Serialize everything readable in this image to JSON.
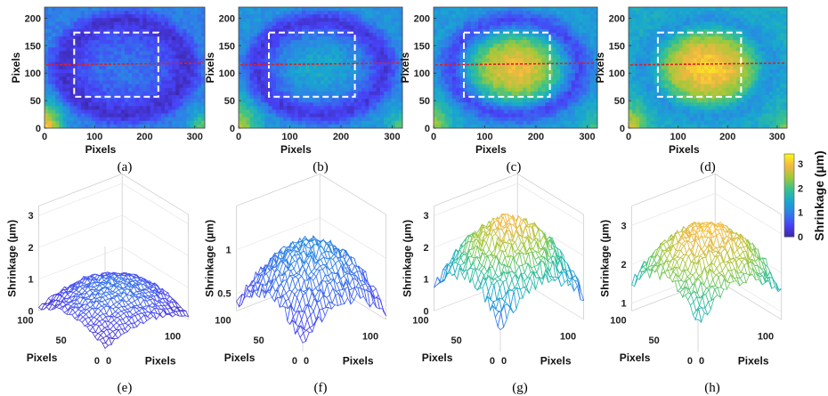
{
  "chart_data": {
    "type": "heatmap",
    "heatmaps": [
      {
        "caption": "(a)",
        "xlabel": "Pixels",
        "ylabel": "Pixels",
        "xticks": [
          "0",
          "100",
          "200",
          "300"
        ],
        "yticks": [
          "0",
          "50",
          "100",
          "150",
          "200"
        ],
        "xlim": [
          0,
          320
        ],
        "ylim": [
          0,
          220
        ],
        "center_level": 0.9,
        "ring_level": 0.2,
        "edge_level": 1.0,
        "corner_level": 3.0
      },
      {
        "caption": "(b)",
        "xlabel": "Pixels",
        "ylabel": "Pixels",
        "xticks": [
          "0",
          "100",
          "200",
          "300"
        ],
        "yticks": [
          "0",
          "50",
          "100",
          "150",
          "200"
        ],
        "xlim": [
          0,
          320
        ],
        "ylim": [
          0,
          220
        ],
        "center_level": 1.5,
        "ring_level": 0.3,
        "edge_level": 1.2,
        "corner_level": 2.6
      },
      {
        "caption": "(c)",
        "xlabel": "Pixels",
        "ylabel": "Pixels",
        "xticks": [
          "0",
          "100",
          "200",
          "300"
        ],
        "yticks": [
          "0",
          "50",
          "100",
          "150",
          "200"
        ],
        "xlim": [
          0,
          320
        ],
        "ylim": [
          0,
          220
        ],
        "center_level": 2.9,
        "ring_level": 0.5,
        "edge_level": 1.3,
        "corner_level": 2.4
      },
      {
        "caption": "(d)",
        "xlabel": "Pixels",
        "ylabel": "Pixels",
        "xticks": [
          "0",
          "100",
          "200",
          "300"
        ],
        "yticks": [
          "0",
          "50",
          "100",
          "150",
          "200"
        ],
        "xlim": [
          0,
          320
        ],
        "ylim": [
          0,
          220
        ],
        "center_level": 3.1,
        "ring_level": 1.2,
        "edge_level": 1.5,
        "corner_level": 2.6
      }
    ],
    "surfaces": [
      {
        "caption": "(e)",
        "zlabel": "Shrinkage (µm)",
        "xlabel": "Pixels",
        "ylabel": "Pixels",
        "zticks": [
          "0",
          "1",
          "2",
          "3"
        ],
        "zlim": [
          0,
          3.3
        ],
        "xticks": [
          "0",
          "100"
        ],
        "yticks": [
          "0",
          "50",
          "100"
        ],
        "peak": 0.9,
        "base": 0.1
      },
      {
        "caption": "(f)",
        "zlabel": "Shrinkage (µm)",
        "xlabel": "Pixels",
        "ylabel": "Pixels",
        "zticks": [
          "0.5",
          "1"
        ],
        "zlim": [
          0.3,
          1.5
        ],
        "xticks": [
          "0",
          "100"
        ],
        "yticks": [
          "0",
          "50",
          "100"
        ],
        "peak": 1.1,
        "base": 0.35
      },
      {
        "caption": "(g)",
        "zlabel": "Shrinkage (µm)",
        "xlabel": "Pixels",
        "ylabel": "Pixels",
        "zticks": [
          "0",
          "1",
          "2",
          "3"
        ],
        "zlim": [
          0,
          3.3
        ],
        "xticks": [
          "0",
          "100"
        ],
        "yticks": [
          "0",
          "50",
          "100"
        ],
        "peak": 2.9,
        "base": 0.7
      },
      {
        "caption": "(h)",
        "zlabel": "Shrinkage (µm)",
        "xlabel": "Pixels",
        "ylabel": "Pixels",
        "zticks": [
          "1",
          "2",
          "3"
        ],
        "zlim": [
          0.8,
          3.5
        ],
        "xticks": [
          "0",
          "100"
        ],
        "yticks": [
          "0",
          "50",
          "100"
        ],
        "peak": 3.0,
        "base": 1.5
      }
    ],
    "colorbar": {
      "label": "Shrinkage (µm)",
      "ticks": [
        "0",
        "1",
        "2",
        "3"
      ],
      "range": [
        0,
        3.4
      ],
      "colormap": [
        "#3e26a8",
        "#4743f8",
        "#2f7fe8",
        "#18a8cf",
        "#36c18f",
        "#9fc93a",
        "#f5b741",
        "#f9fb15"
      ]
    }
  }
}
